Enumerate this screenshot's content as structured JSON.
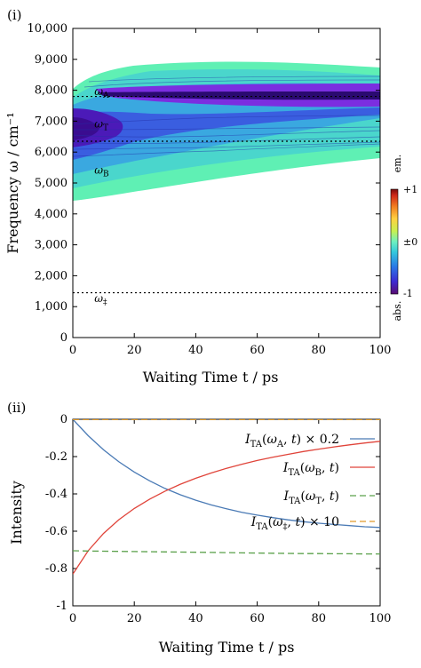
{
  "chart_data": [
    {
      "panel": "(i)",
      "type": "heatmap",
      "xlabel": "Waiting Time t / ps",
      "ylabel": "Frequency ω / cm⁻¹",
      "xlim": [
        0,
        100
      ],
      "ylim": [
        0,
        10000
      ],
      "xticks": [
        "0",
        "20",
        "40",
        "60",
        "80",
        "100"
      ],
      "yticks": [
        "0",
        "1,000",
        "2,000",
        "3,000",
        "4,000",
        "5,000",
        "6,000",
        "7,000",
        "8,000",
        "9,000",
        "10,000"
      ],
      "annotations": [
        {
          "label": "ωA",
          "x": 7,
          "y": 7850
        },
        {
          "label": "ωT",
          "x": 7,
          "y": 6800
        },
        {
          "label": "ωB",
          "x": 7,
          "y": 5300
        },
        {
          "label": "ω‡",
          "x": 7,
          "y": 1150
        }
      ],
      "dotted_lines_y": [
        7800,
        6350,
        1450
      ],
      "colorbar": {
        "ticks": [
          "+1",
          "±0",
          "-1"
        ],
        "top_label": "em.",
        "bottom_label": "abs.",
        "colors": [
          "#5a0c72",
          "#3c2bd2",
          "#2a78e6",
          "#34c8dc",
          "#6ef0c0",
          "#c8f050",
          "#ffd040",
          "#f07a20",
          "#d02a1a",
          "#7a0c0c"
        ]
      }
    },
    {
      "panel": "(ii)",
      "type": "line",
      "xlabel": "Waiting Time t / ps",
      "ylabel": "Intensity",
      "xlim": [
        0,
        100
      ],
      "ylim": [
        -1,
        0
      ],
      "xticks": [
        "0",
        "20",
        "40",
        "60",
        "80",
        "100"
      ],
      "yticks": [
        "0",
        "-0.2",
        "-0.4",
        "-0.6",
        "-0.8",
        "-1"
      ],
      "x": [
        0,
        5,
        10,
        15,
        20,
        25,
        30,
        35,
        40,
        45,
        50,
        55,
        60,
        65,
        70,
        75,
        80,
        85,
        90,
        95,
        100
      ],
      "series": [
        {
          "name": "ITA(ωA, t) × 0.2",
          "color": "#4a7ab5",
          "dash": "solid",
          "values": [
            0.0,
            -0.088,
            -0.164,
            -0.228,
            -0.283,
            -0.33,
            -0.371,
            -0.405,
            -0.434,
            -0.459,
            -0.48,
            -0.499,
            -0.514,
            -0.527,
            -0.539,
            -0.549,
            -0.557,
            -0.564,
            -0.57,
            -0.576,
            -0.58
          ]
        },
        {
          "name": "ITA(ωB, t)",
          "color": "#e0443a",
          "dash": "solid",
          "values": [
            -0.83,
            -0.705,
            -0.612,
            -0.538,
            -0.478,
            -0.428,
            -0.385,
            -0.348,
            -0.316,
            -0.288,
            -0.263,
            -0.241,
            -0.221,
            -0.204,
            -0.188,
            -0.173,
            -0.16,
            -0.148,
            -0.137,
            -0.127,
            -0.118
          ]
        },
        {
          "name": "ITA(ωT, t)",
          "color": "#5aa04a",
          "dash": "dashed",
          "values": [
            -0.705,
            -0.706,
            -0.707,
            -0.708,
            -0.709,
            -0.71,
            -0.711,
            -0.712,
            -0.713,
            -0.714,
            -0.715,
            -0.716,
            -0.717,
            -0.718,
            -0.719,
            -0.72,
            -0.72,
            -0.721,
            -0.721,
            -0.722,
            -0.722
          ]
        },
        {
          "name": "ITA(ω‡, t) × 10",
          "color": "#e09a2a",
          "dash": "dashed",
          "values": [
            -0.002,
            -0.002,
            -0.002,
            -0.002,
            -0.002,
            -0.002,
            -0.002,
            -0.002,
            -0.002,
            -0.002,
            -0.002,
            -0.002,
            -0.002,
            -0.002,
            -0.002,
            -0.002,
            -0.002,
            -0.002,
            -0.002,
            -0.002,
            -0.002
          ]
        }
      ]
    }
  ]
}
